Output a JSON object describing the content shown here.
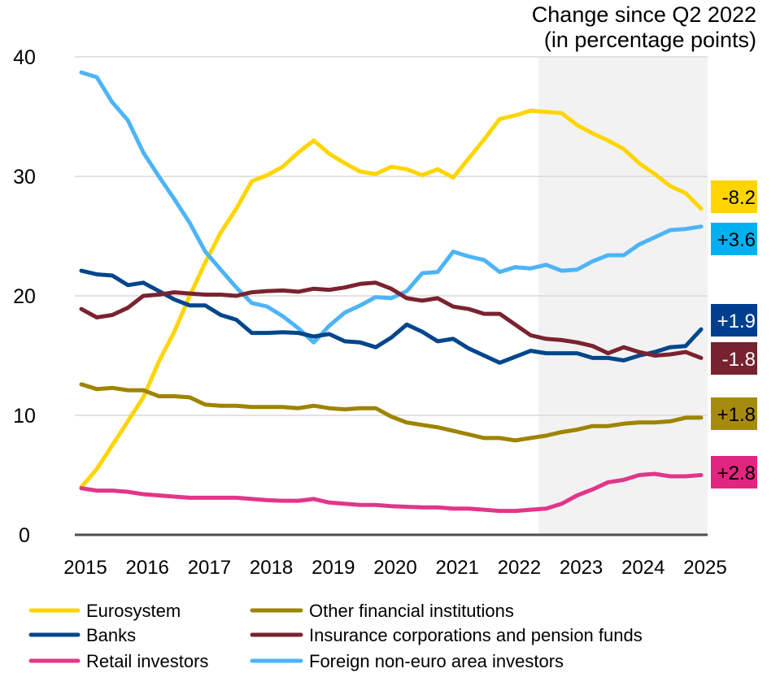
{
  "chart_data": {
    "type": "line",
    "title": "Change since Q2 2022",
    "subtitle": "(in percentage points)",
    "xlabel": "",
    "ylabel": "",
    "xlim": [
      2015,
      2025
    ],
    "ylim": [
      0,
      40
    ],
    "x_ticks": [
      "2015",
      "2016",
      "2017",
      "2018",
      "2019",
      "2020",
      "2021",
      "2022",
      "2023",
      "2024",
      "2025"
    ],
    "y_ticks": [
      "0",
      "10",
      "20",
      "30",
      "40"
    ],
    "grid": "horizontal",
    "legend": "bottom",
    "shaded_period": {
      "from": "Q2 2022",
      "to": "Q1 2025",
      "color": "#f2f2f2"
    },
    "x_start": "2015 Q1",
    "x_step": "quarter",
    "series": [
      {
        "name": "Eurosystem",
        "color": "#FFD500",
        "label": "-8.2",
        "label_color": "#FFD500",
        "label_text_color": "#000000",
        "values": [
          4.0,
          5.5,
          7.5,
          9.5,
          11.5,
          14.5,
          17,
          20,
          22.8,
          25.3,
          27.3,
          29.6,
          30.1,
          30.8,
          32.0,
          33.0,
          31.9,
          31.1,
          30.4,
          30.2,
          30.8,
          30.6,
          30.1,
          30.6,
          29.9,
          31.5,
          33.1,
          34.8,
          35.1,
          35.5,
          35.4,
          35.3,
          34.3,
          33.6,
          33.0,
          32.3,
          31.1,
          30.2,
          29.2,
          28.6,
          27.3
        ]
      },
      {
        "name": "Foreign non-euro area investors",
        "color": "#4DB4F7",
        "label": "+3.6",
        "label_color": "#00B0F0",
        "label_text_color": "#000000",
        "values": [
          38.7,
          38.3,
          36.2,
          34.7,
          32.0,
          30.0,
          28.1,
          26.1,
          23.7,
          22.2,
          20.7,
          19.4,
          19.1,
          18.3,
          17.3,
          16.1,
          17.5,
          18.6,
          19.2,
          19.9,
          19.8,
          20.4,
          21.9,
          22.0,
          23.7,
          23.3,
          23.0,
          22.0,
          22.4,
          22.3,
          22.6,
          22.1,
          22.2,
          22.9,
          23.4,
          23.4,
          24.3,
          24.9,
          25.5,
          25.6,
          25.8
        ]
      },
      {
        "name": "Banks",
        "color": "#00468C",
        "label": "+1.9",
        "label_color": "#003F8F",
        "label_text_color": "#ffffff",
        "values": [
          22.1,
          21.8,
          21.7,
          20.9,
          21.1,
          20.4,
          19.7,
          19.2,
          19.2,
          18.4,
          18.0,
          16.9,
          16.9,
          16.95,
          16.9,
          16.6,
          16.8,
          16.2,
          16.1,
          15.7,
          16.5,
          17.6,
          17.0,
          16.2,
          16.4,
          15.6,
          15.0,
          14.4,
          14.9,
          15.4,
          15.2,
          15.2,
          15.2,
          14.8,
          14.8,
          14.6,
          15.0,
          15.3,
          15.7,
          15.8,
          17.2
        ]
      },
      {
        "name": "Insurance corporations and pension funds",
        "color": "#7A2230",
        "label": "-1.8",
        "label_color": "#77232F",
        "label_text_color": "#ffffff",
        "values": [
          18.9,
          18.2,
          18.4,
          19.0,
          20.0,
          20.1,
          20.3,
          20.2,
          20.1,
          20.1,
          20.0,
          20.3,
          20.4,
          20.45,
          20.35,
          20.6,
          20.5,
          20.7,
          21.0,
          21.1,
          20.6,
          19.8,
          19.6,
          19.8,
          19.1,
          18.9,
          18.5,
          18.5,
          17.6,
          16.7,
          16.4,
          16.3,
          16.1,
          15.8,
          15.2,
          15.7,
          15.3,
          15.0,
          15.1,
          15.3,
          14.8
        ]
      },
      {
        "name": "Other financial institutions",
        "color": "#9E8400",
        "label": "+1.8",
        "label_color": "#A68A0D",
        "label_text_color": "#000000",
        "values": [
          12.6,
          12.2,
          12.3,
          12.1,
          12.1,
          11.6,
          11.6,
          11.5,
          10.9,
          10.8,
          10.8,
          10.7,
          10.7,
          10.7,
          10.6,
          10.8,
          10.6,
          10.5,
          10.6,
          10.6,
          9.9,
          9.4,
          9.2,
          9.0,
          8.7,
          8.4,
          8.1,
          8.1,
          7.9,
          8.1,
          8.3,
          8.6,
          8.8,
          9.1,
          9.1,
          9.3,
          9.4,
          9.4,
          9.5,
          9.8,
          9.8
        ]
      },
      {
        "name": "Retail investors",
        "color": "#E3358A",
        "label": "+2.8",
        "label_color": "#E0267F",
        "label_text_color": "#000000",
        "values": [
          3.9,
          3.7,
          3.7,
          3.6,
          3.4,
          3.3,
          3.2,
          3.1,
          3.1,
          3.1,
          3.1,
          3.0,
          2.9,
          2.85,
          2.85,
          3.0,
          2.7,
          2.6,
          2.5,
          2.5,
          2.4,
          2.35,
          2.3,
          2.3,
          2.2,
          2.2,
          2.1,
          2.0,
          2.0,
          2.1,
          2.2,
          2.6,
          3.3,
          3.8,
          4.4,
          4.6,
          5.0,
          5.1,
          4.9,
          4.9,
          5.0
        ]
      }
    ],
    "legend_order": [
      [
        "Eurosystem",
        "Banks",
        "Retail investors"
      ],
      [
        "Other financial institutions",
        "Insurance corporations and pension funds",
        "Foreign non-euro area investors"
      ]
    ]
  }
}
